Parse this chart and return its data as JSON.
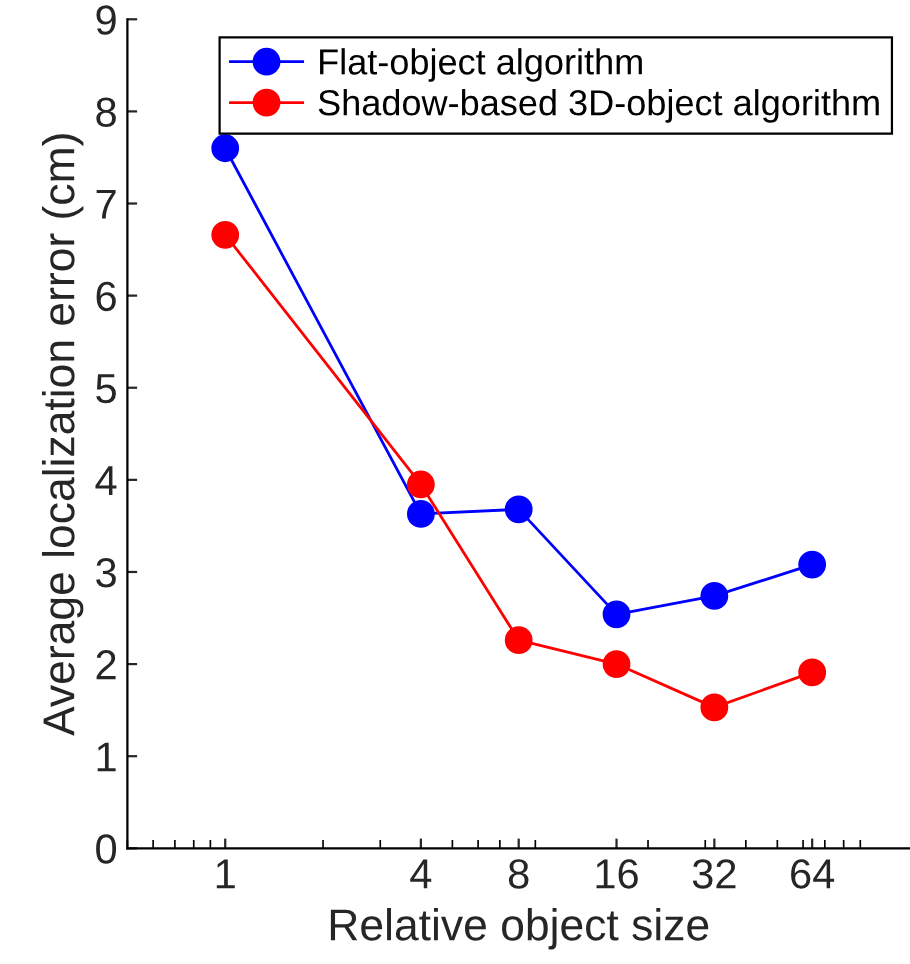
{
  "chart_data": {
    "type": "line",
    "xlabel": "Relative object size",
    "ylabel": "Average localization error (cm)",
    "x": [
      1,
      4,
      8,
      16,
      32,
      64
    ],
    "series": [
      {
        "name": "Flat-object algorithm",
        "color": "#0000ff",
        "values": [
          7.6,
          3.63,
          3.68,
          2.54,
          2.74,
          3.08
        ]
      },
      {
        "name": "Shadow-based 3D-object algorithm",
        "color": "#ff0000",
        "values": [
          6.66,
          3.95,
          2.26,
          2.0,
          1.53,
          1.91
        ]
      }
    ],
    "log": "x",
    "xlim": [
      0.5,
      128
    ],
    "xticks": [
      1,
      4,
      8,
      16,
      32,
      64
    ],
    "ylim": [
      0,
      9
    ],
    "yticks": [
      0,
      1,
      2,
      3,
      4,
      5,
      6,
      7,
      8,
      9
    ],
    "grid": false,
    "legend": "top right",
    "marker": "circle",
    "line_style": "solid"
  }
}
